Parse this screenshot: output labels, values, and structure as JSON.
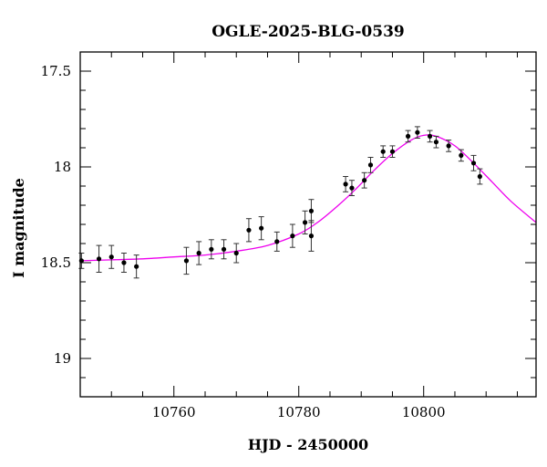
{
  "chart_data": {
    "type": "scatter",
    "title": "OGLE-2025-BLG-0539",
    "xlabel": "HJD - 2450000",
    "ylabel": "I magnitude",
    "xlim": [
      10745,
      10818
    ],
    "ylim": [
      19.2,
      17.4
    ],
    "y_inverted": true,
    "grid": false,
    "x_ticks": [
      10760,
      10780,
      10800
    ],
    "x_tick_labels": [
      "10760",
      "10780",
      "10800"
    ],
    "y_ticks": [
      17.5,
      18,
      18.5,
      19
    ],
    "y_tick_labels": [
      "17.5",
      "18",
      "18.5",
      "19"
    ],
    "colors": {
      "points": "#000000",
      "model": "#ee00ee",
      "errorbars": "#333333"
    },
    "series": [
      {
        "name": "",
        "kind": "points-with-errorbars",
        "x": [
          10745.2,
          10748.0,
          10750.0,
          10752.0,
          10754.0,
          10762.0,
          10764.0,
          10766.0,
          10768.0,
          10770.0,
          10772.0,
          10774.0,
          10776.5,
          10779.0,
          10781.0,
          10782.0,
          10782.0,
          10787.5,
          10788.5,
          10790.5,
          10791.5,
          10793.5,
          10795.0,
          10797.5,
          10799.0,
          10801.0,
          10802.0,
          10804.0,
          10806.0,
          10808.0,
          10809.0
        ],
        "y": [
          18.49,
          18.48,
          18.47,
          18.5,
          18.52,
          18.49,
          18.45,
          18.43,
          18.43,
          18.45,
          18.33,
          18.32,
          18.39,
          18.36,
          18.29,
          18.36,
          18.23,
          18.09,
          18.11,
          18.07,
          17.99,
          17.92,
          17.92,
          17.84,
          17.82,
          17.84,
          17.87,
          17.89,
          17.94,
          17.98,
          18.05
        ],
        "err": [
          0.04,
          0.07,
          0.06,
          0.05,
          0.06,
          0.07,
          0.06,
          0.05,
          0.05,
          0.05,
          0.06,
          0.06,
          0.05,
          0.06,
          0.06,
          0.08,
          0.06,
          0.04,
          0.04,
          0.04,
          0.04,
          0.03,
          0.03,
          0.03,
          0.03,
          0.03,
          0.03,
          0.03,
          0.03,
          0.04,
          0.04
        ]
      },
      {
        "name": "",
        "kind": "model-curve",
        "x": [
          10745,
          10750,
          10755,
          10760,
          10765,
          10770,
          10775,
          10780,
          10783,
          10786,
          10789,
          10792,
          10795,
          10798,
          10800,
          10802,
          10805,
          10808,
          10811,
          10814,
          10818
        ],
        "y": [
          18.49,
          18.485,
          18.48,
          18.47,
          18.46,
          18.44,
          18.41,
          18.35,
          18.29,
          18.21,
          18.12,
          18.02,
          17.93,
          17.86,
          17.835,
          17.84,
          17.89,
          17.98,
          18.08,
          18.18,
          18.29
        ]
      }
    ]
  }
}
